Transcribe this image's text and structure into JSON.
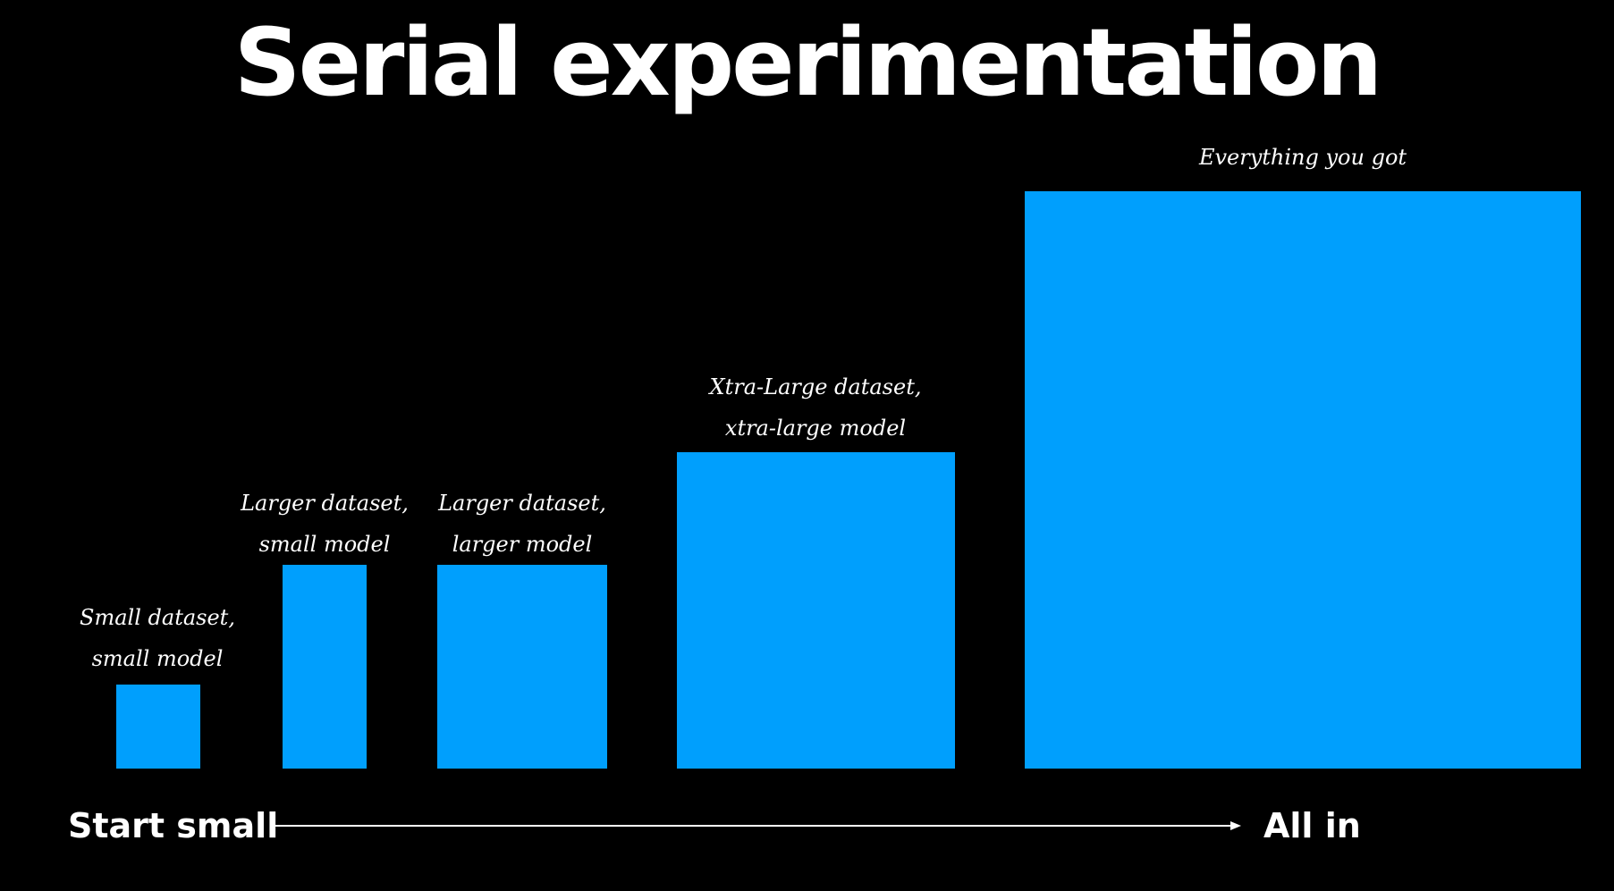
{
  "title": "Serial experimentation",
  "colors": {
    "background": "#000000",
    "box": "#009ffd",
    "text": "#ffffff"
  },
  "stages": [
    {
      "line1": "Small dataset,",
      "line2": "small model"
    },
    {
      "line1": "Larger dataset,",
      "line2": "small model"
    },
    {
      "line1": "Larger dataset,",
      "line2": "larger model"
    },
    {
      "line1": "Xtra-Large dataset,",
      "line2": "xtra-large model"
    },
    {
      "line1": "Everything you got",
      "line2": ""
    }
  ],
  "axis": {
    "start_label": "Start small",
    "end_label": "All in"
  }
}
